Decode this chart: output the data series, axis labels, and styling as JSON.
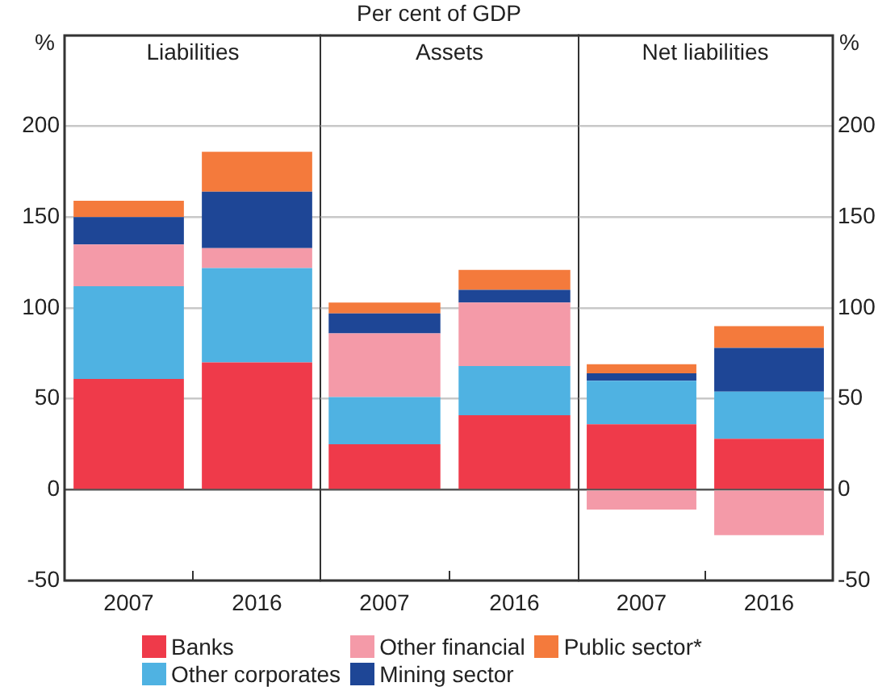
{
  "chart_data": [
    {
      "type": "bar",
      "subtitle": "Liabilities",
      "ylabel": "%",
      "categories": [
        "2007",
        "2016"
      ],
      "stacked": true,
      "ylim": [
        -50,
        250
      ],
      "yticks": [
        -50,
        0,
        50,
        100,
        150,
        200,
        {
          "value": 250,
          "label": null
        }
      ],
      "grid": "y",
      "legend": "bottom",
      "series": [
        {
          "name": "Banks",
          "color": "#ef3a4a",
          "values": [
            61,
            70
          ]
        },
        {
          "name": "Other corporates",
          "color": "#4fb2e2",
          "values": [
            51,
            52
          ]
        },
        {
          "name": "Other financial",
          "color": "#f49aa8",
          "values": [
            23,
            11
          ]
        },
        {
          "name": "Mining sector",
          "color": "#1e4696",
          "values": [
            15,
            31
          ]
        },
        {
          "name": "Public sector*",
          "color": "#f47a3c",
          "values": [
            9,
            22
          ]
        }
      ]
    },
    {
      "type": "bar",
      "title": "Per cent of GDP",
      "subtitle": "Assets",
      "categories": [
        "2007",
        "2016"
      ],
      "stacked": true,
      "ylim": [
        -50,
        250
      ],
      "yticks": [
        -50,
        0,
        50,
        100,
        150,
        200,
        250
      ],
      "grid": "y",
      "tick_labels": "x",
      "series": [
        {
          "color": "#ef3a4a",
          "values": [
            25,
            41
          ]
        },
        {
          "color": "#4fb2e2",
          "values": [
            26,
            27
          ]
        },
        {
          "color": "#f49aa8",
          "values": [
            35,
            35
          ]
        },
        {
          "color": "#1e4696",
          "values": [
            11,
            7
          ]
        },
        {
          "color": "#f47a3c",
          "values": [
            6,
            11
          ]
        }
      ]
    },
    {
      "type": "bar",
      "subtitle": "Net liabilities",
      "ylabel": "%",
      "categories": [
        "2007",
        "2016"
      ],
      "stacked": true,
      "ylim": [
        -50,
        250
      ],
      "yticks": [
        -50,
        0,
        50,
        100,
        150,
        200,
        {
          "value": 250,
          "label": null
        }
      ],
      "grid": "y",
      "series": [
        {
          "color": "#ef3a4a",
          "values": [
            36,
            28
          ]
        },
        {
          "color": "#4fb2e2",
          "values": [
            24,
            26
          ]
        },
        {
          "color": "#f49aa8",
          "values": [
            -11,
            -25
          ]
        },
        {
          "color": "#1e4696",
          "values": [
            4,
            24
          ]
        },
        {
          "color": "#f47a3c",
          "values": [
            5,
            12
          ]
        }
      ]
    }
  ]
}
